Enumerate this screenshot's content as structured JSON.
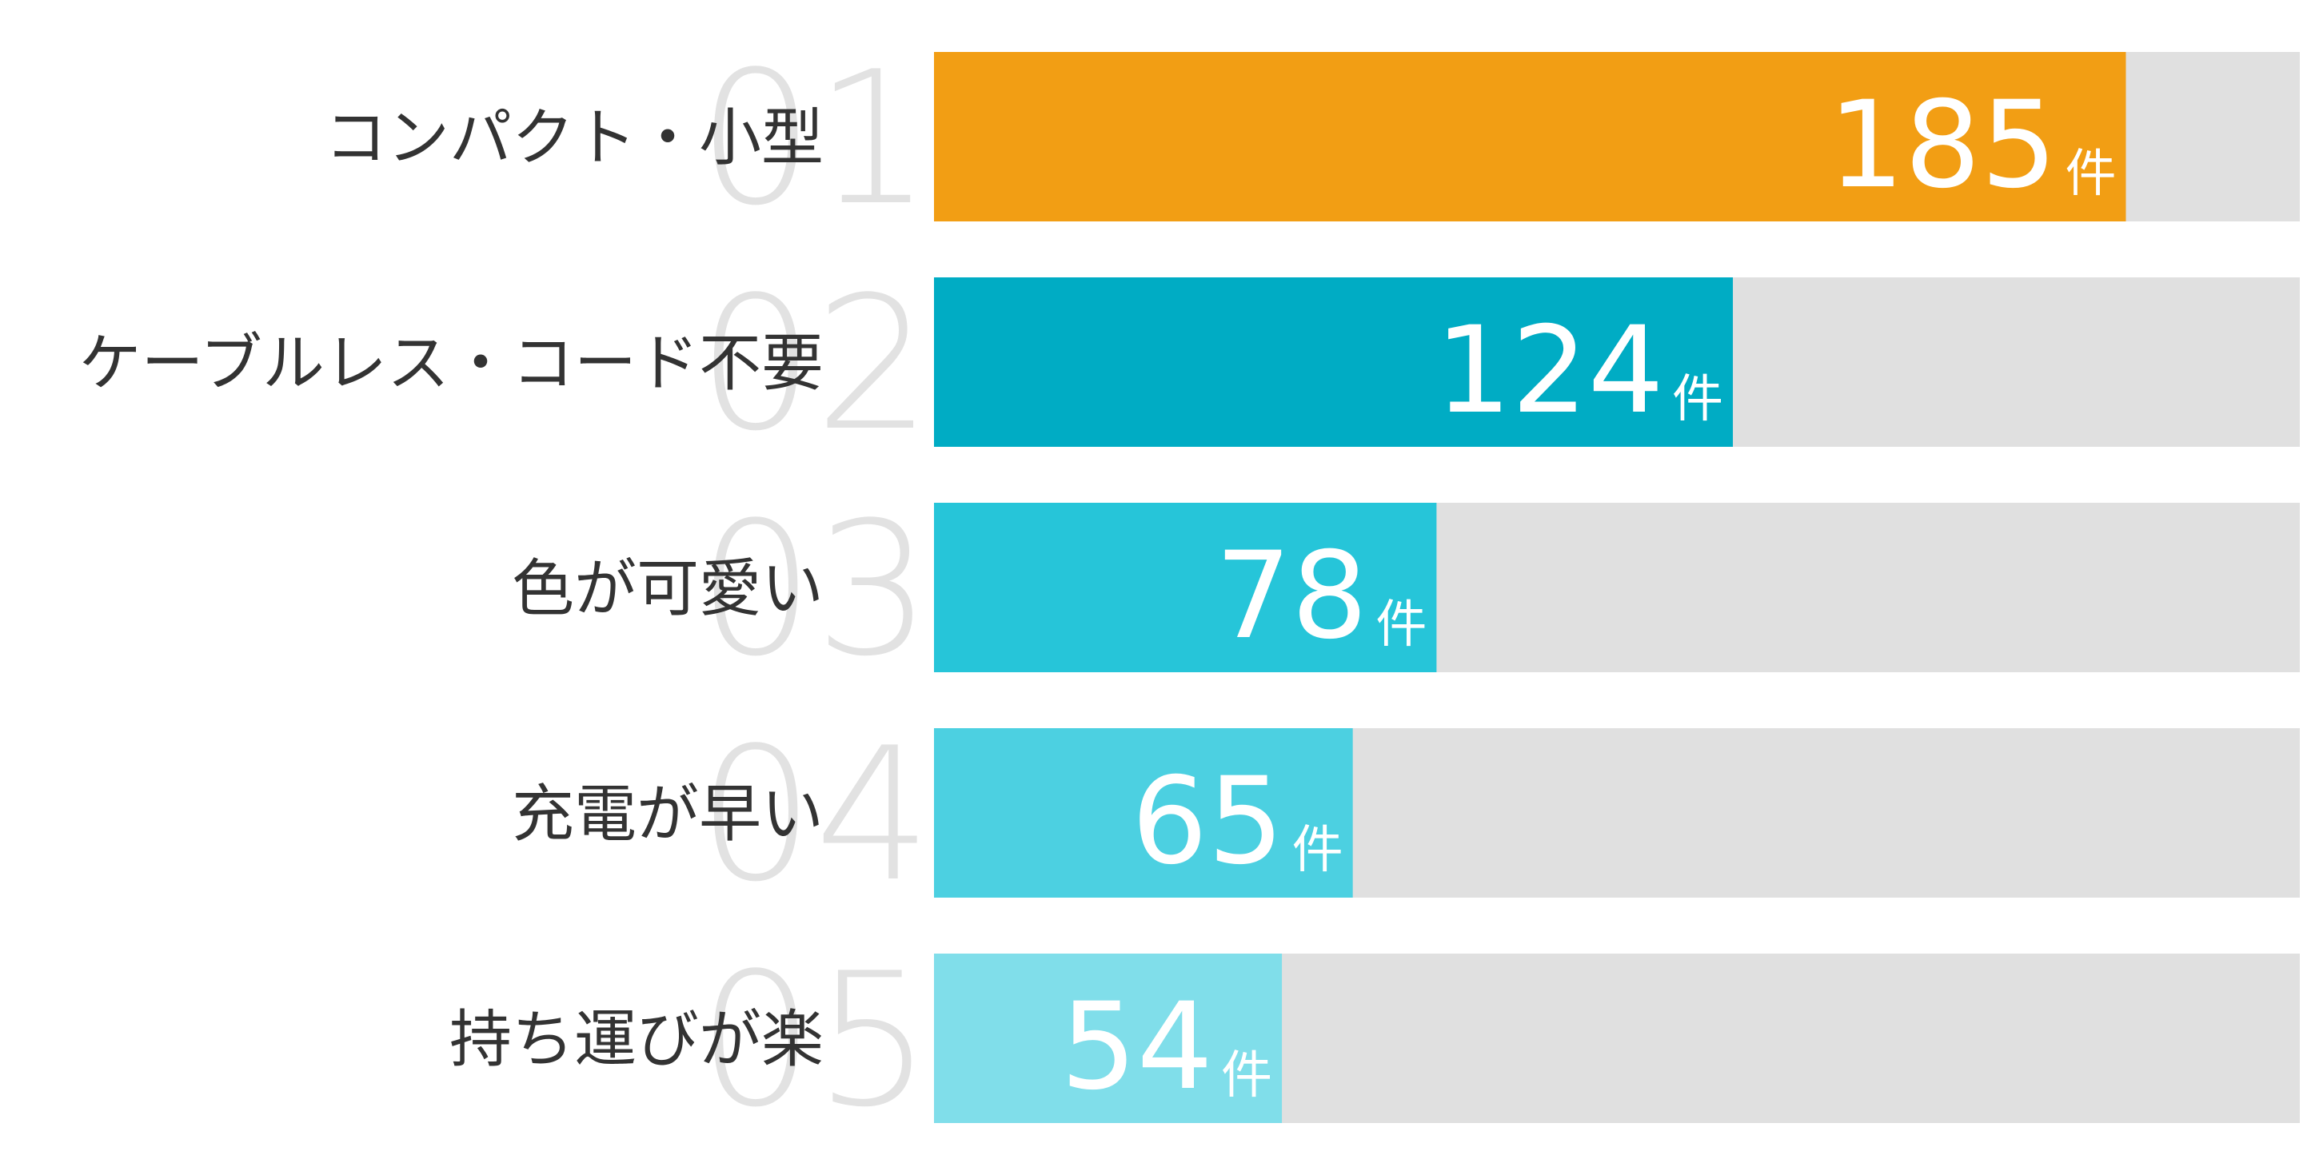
{
  "colors": {
    "track": "#e0e0e0",
    "rank_number": "#e2e2e2",
    "label_text": "#333333",
    "value_text": "#ffffff",
    "bar_1": "#f29e14",
    "bar_2": "#00acc4",
    "bar_3": "#26c5d9",
    "bar_4": "#4cd0e1",
    "bar_5": "#80deea"
  },
  "chart_data": {
    "type": "bar",
    "orientation": "horizontal",
    "categories": [
      "コンパクト・小型",
      "ケーブルレス・コード不要",
      "色が可愛い",
      "充電が早い",
      "持ち運びが楽"
    ],
    "ranks": [
      "01",
      "02",
      "03",
      "04",
      "05"
    ],
    "values": [
      185,
      124,
      78,
      65,
      54
    ],
    "value_labels": [
      "185",
      "124",
      "78",
      "65",
      "54"
    ],
    "unit": "件",
    "xlim": [
      0,
      212
    ],
    "grid": false,
    "legend": "none"
  }
}
